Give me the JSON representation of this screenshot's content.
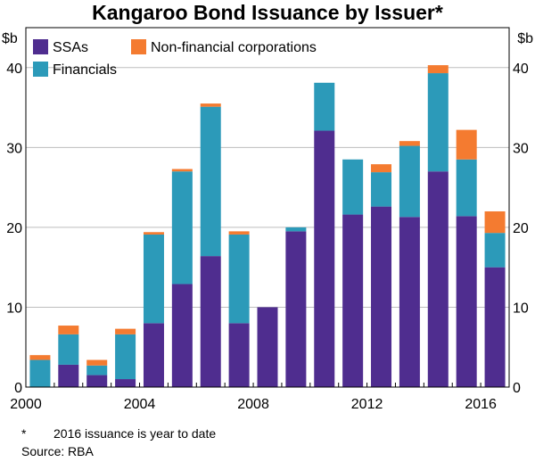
{
  "chart_data": {
    "type": "bar",
    "stacked": true,
    "title": "Kangaroo Bond Issuance by Issuer*",
    "ylabel_left": "$b",
    "ylabel_right": "$b",
    "ylim": [
      0,
      45
    ],
    "yticks": [
      0,
      10,
      20,
      30,
      40
    ],
    "xticks": [
      "2000",
      "2004",
      "2008",
      "2012",
      "2016"
    ],
    "categories": [
      "2000",
      "2001",
      "2002",
      "2003",
      "2004",
      "2005",
      "2006",
      "2007",
      "2008",
      "2009",
      "2010",
      "2011",
      "2012",
      "2013",
      "2014",
      "2015",
      "2016"
    ],
    "series": [
      {
        "name": "SSAs",
        "color": "#4f2d8f",
        "values": [
          0,
          2.8,
          1.5,
          1.0,
          8.0,
          12.9,
          16.4,
          8.0,
          10.0,
          19.5,
          32.1,
          21.6,
          22.6,
          21.3,
          27.0,
          21.4,
          15.0
        ]
      },
      {
        "name": "Financials",
        "color": "#2c9ab9",
        "values": [
          3.4,
          3.8,
          1.2,
          5.6,
          11.1,
          14.1,
          18.7,
          11.1,
          0,
          0.5,
          6.0,
          6.9,
          4.3,
          8.9,
          12.3,
          7.1,
          4.3
        ]
      },
      {
        "name": "Non-financial corporations",
        "color": "#f47b30",
        "values": [
          0.6,
          1.1,
          0.7,
          0.7,
          0.3,
          0.3,
          0.4,
          0.4,
          0,
          0,
          0,
          0,
          1.0,
          0.6,
          1.0,
          3.7,
          2.7
        ]
      }
    ],
    "legend_position": "top-left"
  },
  "footnote": {
    "mark": "*",
    "text": "2016 issuance is year to date"
  },
  "source": {
    "label": "Source:",
    "text": "RBA"
  }
}
